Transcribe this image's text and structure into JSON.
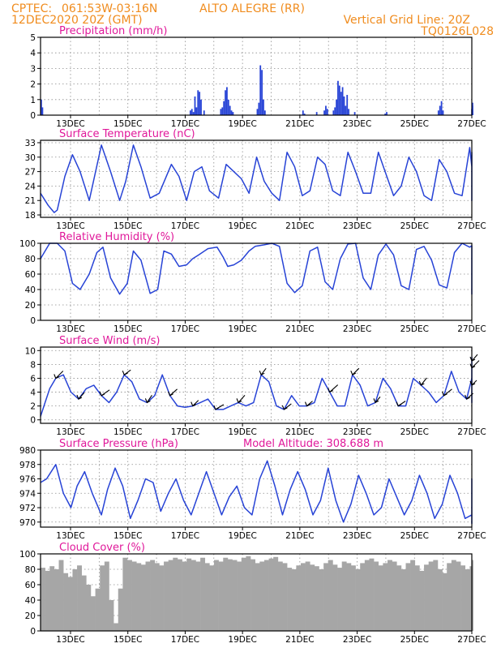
{
  "header": {
    "source": "CPTEC:",
    "coords": "061:53W-03:16N",
    "location": "ALTO ALEGRE (RR)",
    "datetime": "12DEC2020 20Z (GMT)",
    "grid_note": "Vertical Grid Line: 20Z",
    "code": "TQ0126L028"
  },
  "colors": {
    "header": "#f08c1e",
    "title": "#e0189a",
    "line": "#2743d6",
    "bar": "#2743d6",
    "cloud": "#a6a6a6"
  },
  "x_tick_labels": [
    "13DEC",
    "15DEC",
    "17DEC",
    "19DEC",
    "21DEC",
    "23DEC",
    "25DEC",
    "27DEC"
  ],
  "chart_data": [
    {
      "id": "precipitation",
      "type": "bar",
      "title": "Precipitation (mm/h)",
      "x_unit": "days since 12DEC2020 20Z",
      "ylim": [
        0,
        5
      ],
      "yticks": [
        0,
        1,
        2,
        3,
        4,
        5
      ],
      "grid": true,
      "x": [
        0.0,
        0.04,
        4.9,
        4.95,
        5.0,
        5.05,
        5.1,
        5.15,
        5.2,
        5.25,
        5.35,
        5.9,
        5.95,
        6.0,
        6.05,
        6.1,
        6.15,
        6.2,
        6.25,
        6.3,
        7.1,
        7.15,
        7.2,
        7.25,
        7.3,
        7.35,
        8.6,
        8.65,
        9.05,
        9.3,
        9.35,
        9.4,
        9.6,
        9.65,
        9.7,
        9.75,
        9.8,
        9.85,
        9.9,
        9.95,
        10.0,
        10.05,
        10.1,
        10.3,
        11.3,
        11.35,
        13.05,
        13.1,
        13.15,
        13.2,
        14.15,
        14.2,
        14.25,
        14.3,
        15.2,
        16.0,
        16.3
      ],
      "values": [
        1.0,
        0.5,
        0.3,
        0.4,
        0.2,
        1.2,
        0.5,
        1.6,
        1.5,
        1.0,
        0.3,
        0.4,
        0.5,
        0.9,
        1.6,
        1.8,
        1.0,
        0.6,
        0.3,
        0.2,
        0.4,
        0.8,
        3.2,
        2.9,
        1.0,
        0.3,
        0.3,
        0.1,
        0.2,
        0.3,
        0.6,
        0.4,
        0.3,
        0.5,
        1.0,
        2.2,
        1.9,
        1.5,
        1.8,
        1.2,
        0.6,
        1.3,
        0.4,
        0.2,
        0.1,
        0.2,
        0.3,
        0.6,
        0.9,
        0.3,
        0.4,
        0.8,
        0.6,
        0.3,
        0.1,
        0.1,
        0.1
      ]
    },
    {
      "id": "temperature",
      "type": "line",
      "title": "Surface Temperature (nC)",
      "x_unit": "days since 12DEC2020 20Z",
      "ylim": [
        17.5,
        33.5
      ],
      "yticks": [
        18,
        21,
        24,
        27,
        30,
        33
      ],
      "grid": true,
      "x": [
        0.0,
        0.25,
        0.45,
        0.55,
        0.8,
        1.05,
        1.3,
        1.6,
        2.0,
        2.3,
        2.6,
        2.8,
        3.05,
        3.3,
        3.6,
        3.9,
        4.3,
        4.55,
        4.8,
        5.05,
        5.3,
        5.55,
        5.85,
        6.1,
        6.35,
        6.6,
        6.85,
        7.1,
        7.35,
        7.6,
        7.85,
        8.1,
        8.35,
        8.6,
        8.85,
        9.1,
        9.35,
        9.6,
        9.85,
        10.1,
        10.35,
        10.6,
        10.85,
        11.1,
        11.35,
        11.6,
        11.85,
        12.1,
        12.35,
        12.6,
        12.85,
        13.1,
        13.35,
        13.6,
        13.85,
        14.1,
        14.35,
        14.6,
        14.85,
        15.1,
        15.35,
        15.6,
        15.85,
        16.1,
        16.3
      ],
      "values": [
        22.5,
        20.0,
        18.5,
        19.0,
        26.0,
        30.5,
        27.0,
        21.0,
        32.5,
        27.0,
        21.0,
        25.0,
        32.5,
        28.0,
        21.5,
        22.5,
        28.5,
        26.0,
        21.0,
        27.0,
        28.0,
        23.0,
        21.5,
        28.5,
        27.0,
        25.5,
        22.5,
        30.0,
        25.0,
        22.5,
        21.0,
        31.0,
        28.0,
        22.0,
        23.0,
        30.0,
        28.5,
        23.0,
        22.0,
        31.0,
        27.0,
        22.5,
        22.5,
        31.0,
        26.5,
        22.0,
        24.0,
        30.0,
        27.0,
        22.0,
        21.0,
        29.5,
        27.0,
        22.5,
        22.0,
        32.0,
        28.0,
        21.0,
        22.0,
        31.0,
        27.0,
        22.0,
        23.0,
        31.0,
        28.0
      ]
    },
    {
      "id": "humidity",
      "type": "line",
      "title": "Relative Humidity (%)",
      "x_unit": "days since 12DEC2020 20Z",
      "ylim": [
        0,
        100
      ],
      "yticks": [
        0,
        20,
        40,
        60,
        80,
        100
      ],
      "grid": true,
      "x": [
        0.0,
        0.3,
        0.55,
        0.8,
        1.05,
        1.3,
        1.6,
        1.85,
        2.05,
        2.3,
        2.6,
        2.85,
        3.05,
        3.3,
        3.6,
        3.85,
        4.05,
        4.3,
        4.55,
        4.8,
        5.0,
        5.2,
        5.5,
        5.8,
        6.0,
        6.15,
        6.35,
        6.6,
        6.85,
        7.05,
        7.35,
        7.6,
        7.85,
        8.1,
        8.35,
        8.6,
        8.85,
        9.1,
        9.35,
        9.6,
        9.85,
        10.1,
        10.35,
        10.6,
        10.85,
        11.1,
        11.35,
        11.6,
        11.85,
        12.1,
        12.35,
        12.6,
        12.85,
        13.1,
        13.35,
        13.6,
        13.85,
        14.1,
        14.35,
        14.6,
        14.85,
        15.1,
        15.35,
        15.6,
        15.85,
        16.1,
        16.3
      ],
      "values": [
        80,
        100,
        100,
        90,
        48,
        40,
        60,
        88,
        95,
        55,
        34,
        48,
        90,
        78,
        35,
        40,
        90,
        86,
        70,
        72,
        80,
        85,
        93,
        95,
        82,
        70,
        72,
        78,
        90,
        96,
        98,
        100,
        96,
        48,
        36,
        45,
        90,
        95,
        50,
        40,
        80,
        99,
        100,
        55,
        40,
        85,
        99,
        85,
        45,
        40,
        92,
        96,
        78,
        46,
        42,
        88,
        100,
        95,
        97,
        50,
        34,
        42,
        80,
        85,
        45,
        40,
        55
      ]
    },
    {
      "id": "wind",
      "type": "line",
      "title": "Surface Wind (m/s)",
      "x_unit": "days since 12DEC2020 20Z",
      "ylim": [
        -0.5,
        10.5
      ],
      "yticks": [
        0,
        2,
        4,
        6,
        8,
        10
      ],
      "grid": true,
      "x": [
        0.0,
        0.15,
        0.3,
        0.5,
        0.75,
        1.0,
        1.25,
        1.5,
        1.75,
        2.0,
        2.25,
        2.5,
        2.75,
        3.0,
        3.25,
        3.5,
        3.75,
        4.0,
        4.25,
        4.5,
        4.75,
        5.0,
        5.25,
        5.5,
        5.75,
        6.0,
        6.25,
        6.5,
        6.75,
        7.0,
        7.25,
        7.5,
        7.75,
        8.0,
        8.25,
        8.5,
        8.75,
        9.0,
        9.25,
        9.5,
        9.75,
        10.0,
        10.25,
        10.5,
        10.75,
        11.0,
        11.25,
        11.5,
        11.75,
        12.0,
        12.25,
        12.5,
        12.75,
        13.0,
        13.25,
        13.5,
        13.75,
        14.0,
        14.25,
        14.5,
        14.75,
        15.0,
        15.25,
        15.5,
        15.75,
        16.0,
        16.15,
        16.3
      ],
      "values": [
        0.5,
        2.5,
        4.5,
        6.0,
        6.5,
        4.0,
        3.0,
        4.5,
        5.0,
        3.5,
        2.5,
        4.0,
        6.5,
        5.5,
        3.0,
        2.5,
        3.5,
        6.5,
        3.5,
        2.0,
        1.8,
        2.0,
        2.5,
        3.0,
        1.5,
        1.5,
        2.0,
        2.5,
        2.0,
        2.5,
        6.5,
        5.5,
        2.0,
        1.5,
        3.5,
        2.0,
        2.0,
        2.5,
        6.0,
        4.0,
        2.0,
        2.0,
        6.5,
        5.0,
        2.0,
        2.5,
        6.0,
        4.5,
        2.0,
        2.0,
        6.0,
        5.0,
        4.0,
        2.5,
        3.5,
        7.0,
        4.0,
        3.0,
        6.0,
        9.0,
        5.0,
        3.0,
        6.0,
        7.5,
        3.0,
        2.5,
        8.5,
        5.0
      ]
    },
    {
      "id": "pressure",
      "type": "line",
      "title": "Surface Pressure (hPa)",
      "note": "Model Altitude: 308.688 m",
      "x_unit": "days since 12DEC2020 20Z",
      "ylim": [
        969.3,
        980
      ],
      "yticks": [
        970,
        972,
        974,
        976,
        978,
        980
      ],
      "grid": true,
      "x": [
        0.0,
        0.2,
        0.5,
        0.75,
        1.0,
        1.2,
        1.45,
        1.7,
        2.0,
        2.2,
        2.45,
        2.7,
        2.95,
        3.2,
        3.45,
        3.7,
        3.95,
        4.2,
        4.45,
        4.7,
        4.95,
        5.2,
        5.45,
        5.7,
        5.95,
        6.2,
        6.45,
        6.7,
        6.95,
        7.2,
        7.45,
        7.7,
        7.95,
        8.2,
        8.45,
        8.7,
        8.95,
        9.2,
        9.45,
        9.7,
        9.95,
        10.2,
        10.45,
        10.7,
        10.95,
        11.2,
        11.45,
        11.7,
        11.95,
        12.2,
        12.45,
        12.7,
        12.95,
        13.2,
        13.45,
        13.7,
        13.95,
        14.2,
        14.45,
        14.7,
        14.95,
        15.2,
        15.45,
        15.7,
        15.95,
        16.15,
        16.3
      ],
      "values": [
        975.5,
        976.0,
        978.0,
        974.0,
        972.0,
        975.0,
        977.0,
        974.0,
        971.0,
        974.5,
        977.5,
        975.0,
        970.5,
        973.0,
        976.0,
        975.5,
        971.5,
        974.0,
        976.0,
        973.0,
        971.0,
        974.0,
        977.0,
        974.0,
        971.0,
        973.5,
        975.0,
        972.0,
        971.0,
        976.0,
        978.5,
        975.0,
        971.0,
        974.5,
        977.0,
        974.5,
        971.0,
        973.0,
        977.5,
        973.0,
        970.0,
        972.5,
        976.5,
        974.0,
        971.0,
        972.0,
        976.0,
        973.5,
        971.0,
        973.0,
        976.5,
        974.0,
        970.5,
        972.5,
        976.5,
        974.0,
        970.5,
        971.0,
        976.0,
        973.5,
        969.8,
        971.5,
        975.0,
        972.0,
        969.8,
        970.5,
        972.0
      ]
    },
    {
      "id": "cloud",
      "type": "bar",
      "title": "Cloud Cover (%)",
      "x_unit": "days since 12DEC2020 20Z",
      "ylim": [
        0,
        100
      ],
      "yticks": [
        0,
        20,
        40,
        60,
        80,
        100
      ],
      "grid": true,
      "x": [
        0.0,
        0.15,
        0.3,
        0.45,
        0.6,
        0.75,
        0.9,
        1.05,
        1.2,
        1.35,
        1.5,
        1.65,
        1.8,
        1.95,
        2.1,
        2.25,
        2.4,
        2.55,
        2.7,
        2.85,
        3.0,
        3.15,
        3.3,
        3.45,
        3.6,
        3.75,
        3.9,
        4.05,
        4.2,
        4.35,
        4.5,
        4.65,
        4.8,
        4.95,
        5.1,
        5.25,
        5.4,
        5.55,
        5.7,
        5.85,
        6.0,
        6.15,
        6.3,
        6.45,
        6.6,
        6.75,
        6.9,
        7.05,
        7.2,
        7.35,
        7.5,
        7.65,
        7.8,
        7.95,
        8.1,
        8.25,
        8.4,
        8.55,
        8.7,
        8.85,
        9.0,
        9.15,
        9.3,
        9.45,
        9.6,
        9.75,
        9.9,
        10.05,
        10.2,
        10.35,
        10.5,
        10.65,
        10.8,
        10.95,
        11.1,
        11.25,
        11.4,
        11.55,
        11.7,
        11.85,
        12.0,
        12.15,
        12.3,
        12.45,
        12.6,
        12.75,
        12.9,
        13.05,
        13.2,
        13.35,
        13.5,
        13.65,
        13.8,
        13.95,
        14.1,
        14.25,
        14.4,
        14.55,
        14.7,
        14.85,
        15.0,
        15.15,
        15.3,
        15.45,
        15.6,
        15.75,
        15.9,
        16.05,
        16.2
      ],
      "values": [
        82,
        78,
        84,
        80,
        92,
        75,
        70,
        80,
        85,
        72,
        60,
        45,
        55,
        85,
        90,
        40,
        10,
        55,
        95,
        92,
        90,
        88,
        86,
        90,
        92,
        88,
        85,
        90,
        92,
        95,
        93,
        90,
        94,
        92,
        90,
        95,
        88,
        85,
        92,
        90,
        95,
        93,
        92,
        90,
        95,
        97,
        93,
        88,
        90,
        92,
        94,
        96,
        90,
        88,
        82,
        80,
        85,
        88,
        90,
        86,
        84,
        80,
        88,
        92,
        86,
        82,
        90,
        88,
        85,
        80,
        88,
        92,
        94,
        90,
        85,
        88,
        92,
        90,
        85,
        80,
        88,
        92,
        85,
        78,
        86,
        90,
        92,
        80,
        75,
        88,
        92,
        90,
        85,
        80,
        84,
        90,
        88,
        82,
        78,
        85,
        88,
        90,
        92,
        88,
        85,
        90,
        92,
        90,
        88
      ]
    }
  ]
}
